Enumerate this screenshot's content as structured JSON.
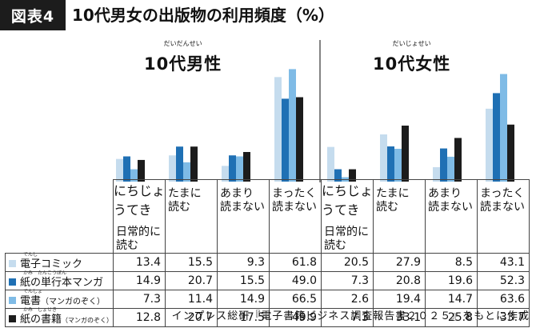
{
  "figure_label": "図表4",
  "title": "10代男女の出版物の利用頻度（%）",
  "source": "インプレス総研『電子書籍ビジネス調査報告書２０２５』をもとに作成",
  "chart_data": {
    "type": "bar",
    "categories": [
      "日常的に読む",
      "たまに読む",
      "あまり読まない",
      "まったく読まない"
    ],
    "category_lines": [
      [
        "日常的に",
        "読む"
      ],
      [
        "たまに",
        "読む"
      ],
      [
        "あまり",
        "読まない"
      ],
      [
        "まったく",
        "読まない"
      ]
    ],
    "category_ruby": [
      "にちじょうてき",
      "",
      "",
      ""
    ],
    "ylim": [
      0,
      70
    ],
    "colors": [
      "#c5dcee",
      "#1f70b4",
      "#7fbbe6",
      "#1c1c1c"
    ],
    "series_names": [
      "電子コミック",
      "紙の単行本マンガ",
      "電書（マンガのぞく）",
      "紙の書籍（マンガのぞく）"
    ],
    "panels": [
      {
        "title": "10代男性",
        "title_ruby": "だいだんせい",
        "series": [
          {
            "name": "電子コミック",
            "values": [
              13.4,
              15.5,
              9.3,
              61.8
            ]
          },
          {
            "name": "紙の単行本マンガ",
            "values": [
              14.9,
              20.7,
              15.5,
              49.0
            ]
          },
          {
            "name": "電書（マンガのぞく）",
            "values": [
              7.3,
              11.4,
              14.9,
              66.5
            ]
          },
          {
            "name": "紙の書籍（マンガのぞく）",
            "values": [
              12.8,
              20.7,
              17.5,
              49.9
            ]
          }
        ]
      },
      {
        "title": "10代女性",
        "title_ruby": "だいじょせい",
        "series": [
          {
            "name": "電子コミック",
            "values": [
              20.5,
              27.9,
              8.5,
              43.1
            ]
          },
          {
            "name": "紙の単行本マンガ",
            "values": [
              7.3,
              20.8,
              19.6,
              52.3
            ]
          },
          {
            "name": "電書（マンガのぞく）",
            "values": [
              2.6,
              19.4,
              14.7,
              63.6
            ]
          },
          {
            "name": "紙の書籍（マンガのぞく）",
            "values": [
              7.3,
              33.1,
              25.8,
              33.7
            ]
          }
        ]
      }
    ],
    "table_rows": [
      {
        "label_main": "電子コミック",
        "label_sub": "",
        "ruby": "でんし",
        "values": [
          "13.4",
          "15.5",
          "9.3",
          "61.8",
          "20.5",
          "27.9",
          "8.5",
          "43.1"
        ]
      },
      {
        "label_main": "紙の単行本マンガ",
        "label_sub": "",
        "ruby": "かみ　たんこうぼん",
        "values": [
          "14.9",
          "20.7",
          "15.5",
          "49.0",
          "7.3",
          "20.8",
          "19.6",
          "52.3"
        ]
      },
      {
        "label_main": "電書",
        "label_sub": "（マンガのぞく）",
        "ruby": "でんしょ",
        "values": [
          "7.3",
          "11.4",
          "14.9",
          "66.5",
          "2.6",
          "19.4",
          "14.7",
          "63.6"
        ]
      },
      {
        "label_main": "紙の書籍",
        "label_sub": "（マンガのぞく）",
        "ruby": "かみ　しょせき",
        "values": [
          "12.8",
          "20.7",
          "17.5",
          "49.9",
          "7.3",
          "33.1",
          "25.8",
          "33.7"
        ]
      }
    ]
  }
}
